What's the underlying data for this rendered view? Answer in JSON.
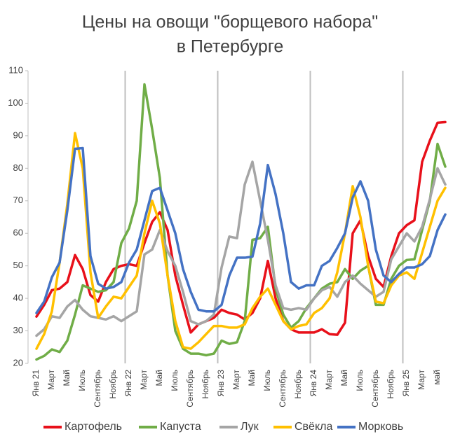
{
  "chart_data": {
    "type": "line",
    "title": [
      "Цены на овощи \"борщевого набора\"",
      "в Петербурге"
    ],
    "categories": [
      "Янв 21",
      null,
      "Март",
      null,
      "Май",
      null,
      "Июль",
      null,
      "Сентябрь",
      null,
      "Ноябрь",
      null,
      "Янв 22",
      null,
      "Март",
      null,
      "Май",
      null,
      "Июль",
      null,
      "Сентябрь",
      null,
      "Ноябрь",
      null,
      "Янв 23",
      null,
      "Март",
      null,
      "Май",
      null,
      "Июль",
      null,
      "Сентябрь",
      null,
      "Ноябрь",
      null,
      "Янв 24",
      null,
      "Март",
      null,
      "Май",
      null,
      "Июль",
      null,
      "Сентябрь",
      null,
      "Ноябрь",
      null,
      "Янв 25",
      null,
      "Март",
      null,
      "май",
      null
    ],
    "series": [
      {
        "name": "Картофель",
        "color": "#e8101a",
        "values": [
          34.4,
          38,
          42.5,
          43,
          45,
          53.3,
          49,
          41,
          39,
          45,
          49,
          50,
          50.5,
          50,
          57,
          63.5,
          66.5,
          61,
          47,
          38,
          29.5,
          32,
          33,
          34,
          36.5,
          35.5,
          35,
          33.5,
          35.5,
          40,
          51.5,
          40,
          33,
          30.5,
          29.5,
          29.5,
          29.5,
          30.5,
          29,
          28.8,
          32.5,
          60,
          64,
          53,
          46,
          43.5,
          53,
          60,
          62.5,
          64,
          82,
          88.5,
          94,
          94.2
        ]
      },
      {
        "name": "Капуста",
        "color": "#70ad47",
        "values": [
          21.2,
          22.3,
          24.3,
          23.5,
          27,
          35,
          44,
          43,
          42,
          42.5,
          45,
          57,
          61.5,
          70,
          105.8,
          92,
          77,
          47,
          30,
          24.5,
          23,
          23,
          22.5,
          23,
          27,
          26,
          26.5,
          33,
          58,
          58.5,
          62,
          43,
          35,
          31,
          33,
          37,
          40,
          43,
          44.5,
          45,
          49,
          46,
          48.5,
          50,
          38,
          38,
          46,
          50,
          51.8,
          52,
          61,
          70,
          87.5,
          80.5
        ]
      },
      {
        "name": "Лук",
        "color": "#a5a5a5",
        "values": [
          28.5,
          30.5,
          34.5,
          34,
          37.5,
          39.5,
          36.5,
          34.5,
          34,
          33.5,
          34.5,
          33,
          34.5,
          36,
          53.5,
          55,
          61,
          54.5,
          50,
          42,
          33,
          32,
          33,
          35,
          49.5,
          59,
          58.5,
          75,
          82,
          70,
          58,
          44,
          37,
          36.5,
          37,
          36.5,
          40,
          42.5,
          43.5,
          40.5,
          45,
          47,
          44.5,
          42.5,
          40.5,
          42,
          52,
          56,
          60,
          57.5,
          62,
          70.5,
          80,
          75
        ]
      },
      {
        "name": "Свёкла",
        "color": "#ffc000",
        "values": [
          24.5,
          29,
          36,
          51,
          69,
          90.8,
          80,
          48,
          34,
          37.5,
          40.5,
          40,
          43.5,
          47,
          60,
          70,
          63,
          47,
          33,
          25,
          24.5,
          26.5,
          29,
          31.5,
          31.5,
          31,
          31,
          32,
          37,
          40.5,
          43,
          38,
          33,
          30.5,
          31.5,
          32,
          35.5,
          37,
          40,
          48,
          60,
          74.5,
          65,
          50,
          39,
          38.5,
          44,
          47,
          48,
          46,
          54,
          62,
          70,
          74
        ]
      },
      {
        "name": "Морковь",
        "color": "#4472c4",
        "values": [
          35.5,
          39,
          46.5,
          51,
          67,
          86,
          86.2,
          53,
          44.5,
          43,
          43.5,
          45,
          51,
          55,
          64,
          73,
          74,
          67,
          60,
          49,
          42,
          36.5,
          36,
          36,
          38,
          47,
          52.5,
          52.5,
          52.8,
          63,
          81,
          72,
          60,
          45,
          43,
          44,
          44,
          50,
          51.5,
          55.5,
          60,
          71,
          76,
          70,
          55,
          47,
          45,
          47.5,
          49.5,
          49.5,
          50.5,
          53,
          61,
          65.8
        ]
      }
    ],
    "ylim": [
      20,
      110
    ],
    "yticks": [
      20,
      30,
      40,
      50,
      60,
      70,
      80,
      90,
      100,
      110
    ],
    "grid": false,
    "legend": "bottom"
  }
}
